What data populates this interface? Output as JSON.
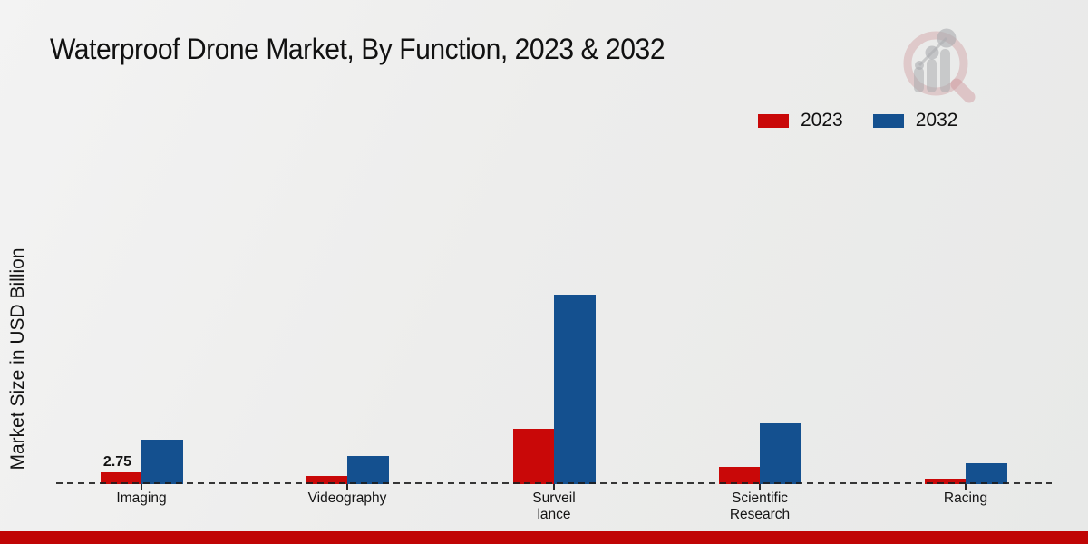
{
  "header": {
    "title": "Waterproof Drone Market, By Function, 2023 & 2032"
  },
  "legend": {
    "items": [
      {
        "label": "2023",
        "color": "#c90808"
      },
      {
        "label": "2032",
        "color": "#14508f"
      }
    ]
  },
  "y_axis": {
    "label": "Market Size in USD Billion"
  },
  "colors": {
    "series_2023": "#c90808",
    "series_2032": "#14508f",
    "footer_bar": "#c00505",
    "baseline": "#1c1c1c"
  },
  "logo": {
    "name": "market-research-future-watermark"
  },
  "chart_data": {
    "type": "bar",
    "title": "Waterproof Drone Market, By Function, 2023 & 2032",
    "ylabel": "Market Size in USD Billion",
    "unit": "USD Billion",
    "categories": [
      "Imaging",
      "Videography",
      "Surveillance",
      "Scientific Research",
      "Racing"
    ],
    "tick_label_lines": [
      [
        "Imaging"
      ],
      [
        "Videography"
      ],
      [
        "Surveil",
        "lance"
      ],
      [
        "Scientific",
        "Research"
      ],
      [
        "Racing"
      ]
    ],
    "series": [
      {
        "name": "2023",
        "color": "#c90808",
        "values": [
          2.75,
          1.85,
          13.0,
          4.0,
          1.3
        ]
      },
      {
        "name": "2032",
        "color": "#14508f",
        "values": [
          10.4,
          6.6,
          44.2,
          14.2,
          4.9
        ]
      }
    ],
    "data_labels": [
      {
        "series": "2023",
        "category": "Imaging",
        "text": "2.75"
      }
    ],
    "legend_position": "top-right",
    "gridlines": false,
    "baseline_style": "dashed",
    "ylim": [
      0,
      45
    ]
  }
}
